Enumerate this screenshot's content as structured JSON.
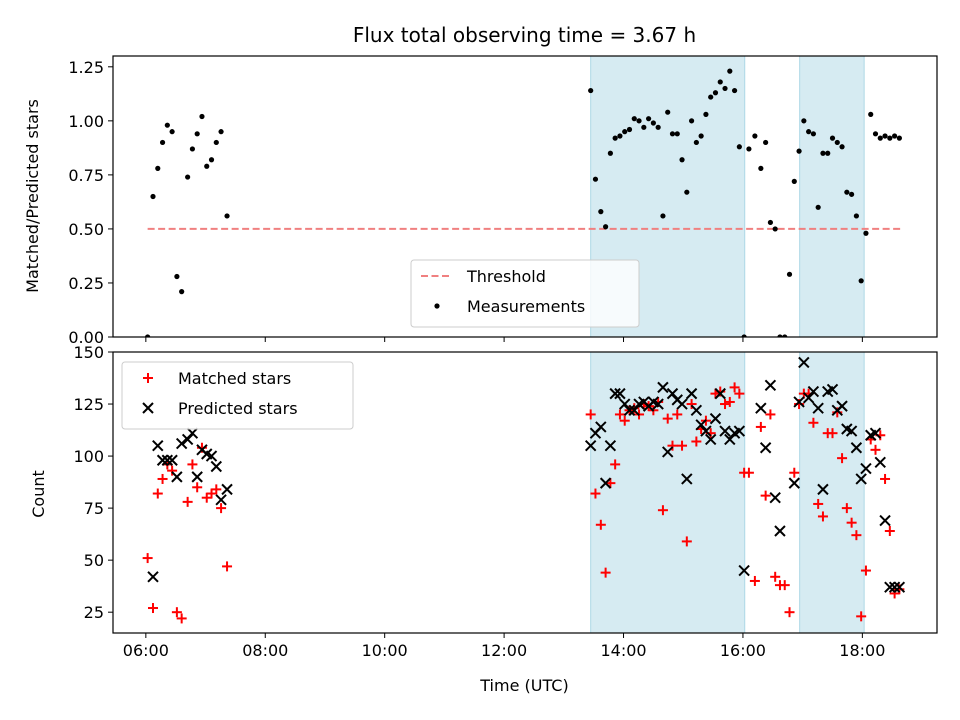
{
  "chart_data": [
    {
      "type": "scatter",
      "title": "Flux total observing time = 3.67 h",
      "ylabel": "Matched/Predicted stars",
      "xlim": [
        5.45,
        19.25
      ],
      "ylim": [
        0,
        1.3
      ],
      "yticks": [
        0,
        0.25,
        0.5,
        0.75,
        1.0,
        1.25
      ],
      "ytick_labels": [
        "0.00",
        "0.25",
        "0.50",
        "0.75",
        "1.00",
        "1.25"
      ],
      "grid": false,
      "legend_position": "lower-center",
      "shaded_intervals": [
        [
          13.45,
          16.03
        ],
        [
          16.95,
          18.03
        ]
      ],
      "threshold": {
        "name": "Threshold",
        "value": 0.5,
        "x_range": [
          6.03,
          18.65
        ],
        "color": "#f08080"
      },
      "series": [
        {
          "name": "Measurements",
          "color": "#000000",
          "x": [
            6.03,
            6.12,
            6.2,
            6.28,
            6.36,
            6.44,
            6.52,
            6.6,
            6.7,
            6.78,
            6.86,
            6.94,
            7.02,
            7.1,
            7.18,
            7.26,
            7.36,
            13.45,
            13.53,
            13.62,
            13.7,
            13.78,
            13.86,
            13.94,
            14.02,
            14.1,
            14.18,
            14.26,
            14.34,
            14.42,
            14.5,
            14.58,
            14.66,
            14.74,
            14.82,
            14.9,
            14.98,
            15.06,
            15.14,
            15.22,
            15.3,
            15.38,
            15.46,
            15.54,
            15.62,
            15.7,
            15.78,
            15.86,
            15.94,
            16.02,
            16.1,
            16.2,
            16.3,
            16.38,
            16.46,
            16.54,
            16.62,
            16.7,
            16.78,
            16.86,
            16.94,
            17.02,
            17.1,
            17.18,
            17.26,
            17.34,
            17.42,
            17.5,
            17.58,
            17.66,
            17.74,
            17.82,
            17.9,
            17.98,
            18.06,
            18.14,
            18.22,
            18.3,
            18.38,
            18.46,
            18.54,
            18.62
          ],
          "y": [
            0.0,
            0.65,
            0.78,
            0.9,
            0.98,
            0.95,
            0.28,
            0.21,
            0.74,
            0.87,
            0.94,
            1.02,
            0.79,
            0.82,
            0.9,
            0.95,
            0.56,
            1.14,
            0.73,
            0.58,
            0.51,
            0.85,
            0.92,
            0.93,
            0.95,
            0.96,
            1.01,
            1.0,
            0.97,
            1.01,
            0.99,
            0.97,
            0.56,
            1.04,
            0.94,
            0.94,
            0.82,
            0.67,
            1.0,
            0.9,
            0.93,
            1.03,
            1.11,
            1.13,
            1.18,
            1.15,
            1.23,
            1.14,
            0.88,
            0.0,
            0.87,
            0.93,
            0.78,
            0.9,
            0.53,
            0.5,
            0.0,
            0.0,
            0.29,
            0.72,
            0.86,
            1.0,
            0.95,
            0.94,
            0.6,
            0.85,
            0.85,
            0.92,
            0.9,
            0.88,
            0.67,
            0.66,
            0.56,
            0.26,
            0.48,
            1.03,
            0.94,
            0.92,
            0.93,
            0.92,
            0.93,
            0.92
          ]
        }
      ]
    },
    {
      "type": "scatter",
      "xlabel": "Time (UTC)",
      "ylabel": "Count",
      "xlim": [
        5.45,
        19.25
      ],
      "ylim": [
        15,
        150
      ],
      "xticks": [
        6,
        8,
        10,
        12,
        14,
        16,
        18
      ],
      "xtick_labels": [
        "06:00",
        "08:00",
        "10:00",
        "12:00",
        "14:00",
        "16:00",
        "18:00"
      ],
      "yticks": [
        25,
        50,
        75,
        100,
        125,
        150
      ],
      "ytick_labels": [
        "25",
        "50",
        "75",
        "100",
        "125",
        "150"
      ],
      "grid": false,
      "legend_position": "upper-left",
      "shaded_intervals": [
        [
          13.45,
          16.03
        ],
        [
          16.95,
          18.03
        ]
      ],
      "series": [
        {
          "name": "Matched stars",
          "marker": "plus",
          "color": "#ff0000",
          "x": [
            6.03,
            6.12,
            6.2,
            6.28,
            6.36,
            6.44,
            6.52,
            6.6,
            6.7,
            6.78,
            6.86,
            6.94,
            7.02,
            7.1,
            7.18,
            7.26,
            7.36,
            13.45,
            13.53,
            13.62,
            13.7,
            13.78,
            13.86,
            13.94,
            14.02,
            14.1,
            14.18,
            14.26,
            14.34,
            14.42,
            14.5,
            14.58,
            14.66,
            14.74,
            14.82,
            14.9,
            14.98,
            15.06,
            15.14,
            15.22,
            15.3,
            15.38,
            15.46,
            15.54,
            15.62,
            15.7,
            15.78,
            15.86,
            15.94,
            16.02,
            16.1,
            16.2,
            16.3,
            16.38,
            16.46,
            16.54,
            16.62,
            16.7,
            16.78,
            16.86,
            16.94,
            17.02,
            17.1,
            17.18,
            17.26,
            17.34,
            17.42,
            17.5,
            17.58,
            17.66,
            17.74,
            17.82,
            17.9,
            17.98,
            18.06,
            18.14,
            18.22,
            18.3,
            18.38,
            18.46,
            18.54,
            18.62
          ],
          "y": [
            51,
            27,
            82,
            89,
            96,
            93,
            25,
            22,
            78,
            96,
            85,
            104,
            80,
            82,
            84,
            75,
            47,
            120,
            82,
            67,
            44,
            87,
            96,
            120,
            117,
            122,
            123,
            120,
            125,
            124,
            122,
            126,
            74,
            118,
            105,
            120,
            105,
            59,
            125,
            107,
            113,
            117,
            111,
            130,
            131,
            125,
            126,
            133,
            130,
            92,
            92,
            40,
            114,
            81,
            120,
            42,
            38,
            38,
            25,
            92,
            125,
            130,
            130,
            116,
            77,
            71,
            111,
            111,
            121,
            99,
            75,
            68,
            62,
            23,
            45,
            108,
            103,
            110,
            89,
            64,
            34,
            36
          ]
        },
        {
          "name": "Predicted stars",
          "marker": "x",
          "color": "#000000",
          "x": [
            6.12,
            6.2,
            6.28,
            6.36,
            6.44,
            6.52,
            6.6,
            6.7,
            6.78,
            6.86,
            6.94,
            7.02,
            7.1,
            7.18,
            7.26,
            7.36,
            13.45,
            13.53,
            13.62,
            13.7,
            13.78,
            13.86,
            13.94,
            14.02,
            14.1,
            14.18,
            14.26,
            14.34,
            14.42,
            14.5,
            14.58,
            14.66,
            14.74,
            14.82,
            14.9,
            14.98,
            15.06,
            15.14,
            15.22,
            15.3,
            15.38,
            15.46,
            15.54,
            15.62,
            15.7,
            15.78,
            15.86,
            15.94,
            16.02,
            16.3,
            16.38,
            16.46,
            16.54,
            16.62,
            16.86,
            16.94,
            17.02,
            17.1,
            17.18,
            17.26,
            17.34,
            17.42,
            17.5,
            17.58,
            17.66,
            17.74,
            17.82,
            17.9,
            17.98,
            18.06,
            18.14,
            18.22,
            18.3,
            18.38,
            18.46,
            18.54,
            18.62
          ],
          "y": [
            42,
            105,
            98,
            98,
            98,
            90,
            106,
            108,
            111,
            90,
            103,
            101,
            100,
            95,
            79,
            84,
            105,
            111,
            114,
            87,
            105,
            130,
            130,
            125,
            122,
            122,
            125,
            126,
            124,
            126,
            125,
            133,
            102,
            130,
            127,
            125,
            89,
            130,
            122,
            115,
            112,
            108,
            118,
            130,
            112,
            108,
            111,
            112,
            45,
            123,
            104,
            134,
            80,
            64,
            87,
            126,
            145,
            128,
            131,
            123,
            84,
            131,
            132,
            122,
            124,
            113,
            112,
            104,
            89,
            94,
            110,
            111,
            97,
            69,
            37,
            37,
            37
          ]
        }
      ]
    }
  ]
}
